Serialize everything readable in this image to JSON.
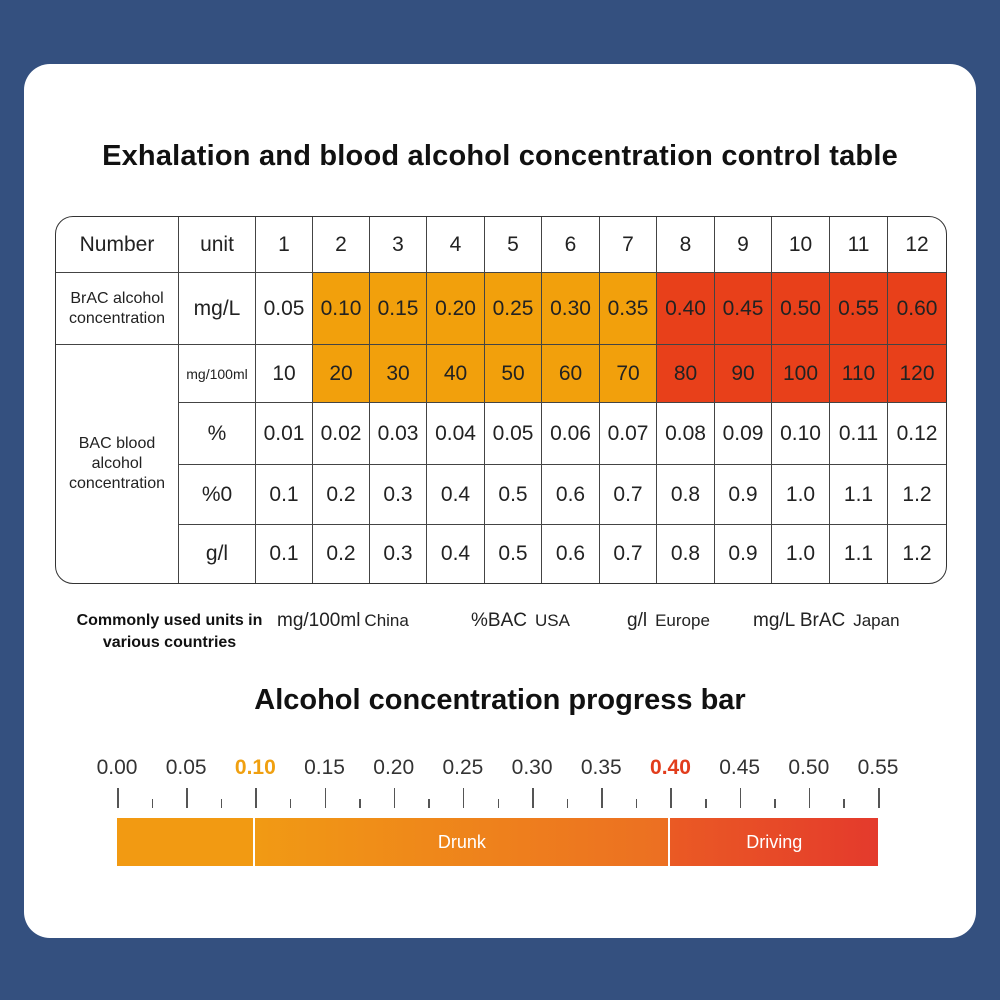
{
  "title": "Exhalation and blood alcohol concentration control table",
  "table": {
    "header": {
      "number": "Number",
      "unit": "unit",
      "cols": [
        "1",
        "2",
        "3",
        "4",
        "5",
        "6",
        "7",
        "8",
        "9",
        "10",
        "11",
        "12"
      ]
    },
    "brac": {
      "label": "BrAC alcohol concentration",
      "unit": "mg/L",
      "values": [
        "0.05",
        "0.10",
        "0.15",
        "0.20",
        "0.25",
        "0.30",
        "0.35",
        "0.40",
        "0.45",
        "0.50",
        "0.55",
        "0.60"
      ]
    },
    "bac": {
      "label": "BAC blood alcohol concentration",
      "rows": [
        {
          "unit": "mg/100ml",
          "values": [
            "10",
            "20",
            "30",
            "40",
            "50",
            "60",
            "70",
            "80",
            "90",
            "100",
            "110",
            "120"
          ]
        },
        {
          "unit": "%",
          "values": [
            "0.01",
            "0.02",
            "0.03",
            "0.04",
            "0.05",
            "0.06",
            "0.07",
            "0.08",
            "0.09",
            "0.10",
            "0.11",
            "0.12"
          ]
        },
        {
          "unit": "%0",
          "values": [
            "0.1",
            "0.2",
            "0.3",
            "0.4",
            "0.5",
            "0.6",
            "0.7",
            "0.8",
            "0.9",
            "1.0",
            "1.1",
            "1.2"
          ]
        },
        {
          "unit": "g/l",
          "values": [
            "0.1",
            "0.2",
            "0.3",
            "0.4",
            "0.5",
            "0.6",
            "0.7",
            "0.8",
            "0.9",
            "1.0",
            "1.1",
            "1.2"
          ]
        }
      ]
    },
    "colors": {
      "orange": "#f2a00c",
      "red": "#e8401a"
    }
  },
  "units_note": {
    "label": "Commonly used units in various countries",
    "entries": [
      {
        "unit": "mg/100ml",
        "country": "China"
      },
      {
        "unit": "%BAC",
        "country": "USA"
      },
      {
        "unit": "g/l",
        "country": "Europe"
      },
      {
        "unit": "mg/L BrAC",
        "country": "Japan"
      }
    ]
  },
  "progress": {
    "title": "Alcohol concentration progress bar",
    "ticks": [
      "0.00",
      "0.05",
      "0.10",
      "0.15",
      "0.20",
      "0.25",
      "0.30",
      "0.35",
      "0.40",
      "0.45",
      "0.50",
      "0.55"
    ],
    "highlight_orange": "0.10",
    "highlight_red": "0.40",
    "segments": [
      {
        "label": "",
        "from": 0.0,
        "to": 0.1,
        "color": "#f29a12"
      },
      {
        "label": "Drunk",
        "from": 0.1,
        "to": 0.4,
        "color": "#ee7a20"
      },
      {
        "label": "Driving",
        "from": 0.4,
        "to": 0.55,
        "color": "#e6402a"
      }
    ]
  }
}
